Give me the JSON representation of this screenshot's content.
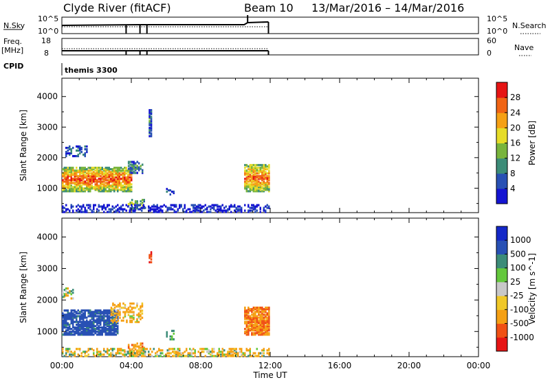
{
  "header": {
    "station": "Clyde River (fitACF)",
    "beam": "Beam 10",
    "date_range": "13/Mar/2016 – 14/Mar/2016"
  },
  "aux_panels": {
    "nsky_label": "N.Sky",
    "nsky_ticks": [
      "10^5",
      "10^0"
    ],
    "nsearch_label": "N.Search",
    "nsearch_ticks": [
      "10^5",
      "10^0"
    ],
    "freq_label": "Freq.",
    "freq_unit": "[MHz]",
    "freq_ticks": [
      "18",
      "8"
    ],
    "nave_label": "Nave",
    "nave_ticks": [
      "60",
      "0"
    ],
    "cpid_label": "CPID",
    "cpid_value": "themis 3300"
  },
  "x_axis": {
    "label": "Time UT",
    "ticks": [
      "00:00",
      "04:00",
      "08:00",
      "12:00",
      "16:00",
      "20:00",
      "00:00"
    ],
    "range_hours": [
      0,
      24
    ]
  },
  "colors": {
    "power": [
      "#1414d2",
      "#2850b4",
      "#3c8c78",
      "#78b43c",
      "#e6dc28",
      "#f5a014",
      "#f06414",
      "#e61414"
    ],
    "velocity": [
      "#e61414",
      "#f05014",
      "#f5a014",
      "#f0c828",
      "#c8c8c8",
      "#64c83c",
      "#3c8c78",
      "#2850b4",
      "#1428c8"
    ]
  },
  "chart_data": [
    {
      "type": "heatmap",
      "name": "Power panel",
      "ylabel": "Slant Range [km]",
      "yticks": [
        "1000",
        "2000",
        "3000",
        "4000"
      ],
      "ylim": [
        200,
        4600
      ],
      "colorbar_label": "Power [dB]",
      "colorbar_ticks": [
        "4",
        "8",
        "12",
        "16",
        "20",
        "24",
        "28"
      ],
      "colorbar_range": [
        0,
        32
      ],
      "regions": [
        {
          "t0": 0.0,
          "t1": 4.0,
          "r0": 900,
          "r1": 1700,
          "level": 0.8
        },
        {
          "t0": 0.2,
          "t1": 1.4,
          "r0": 2050,
          "r1": 2400,
          "level": 0.25
        },
        {
          "t0": 3.8,
          "t1": 4.6,
          "r0": 1500,
          "r1": 1900,
          "level": 0.3
        },
        {
          "t0": 3.8,
          "t1": 4.7,
          "r0": 300,
          "r1": 650,
          "level": 0.45
        },
        {
          "t0": 5.0,
          "t1": 5.1,
          "r0": 2700,
          "r1": 3600,
          "level": 0.25
        },
        {
          "t0": 6.0,
          "t1": 6.4,
          "r0": 750,
          "r1": 1050,
          "level": 0.2
        },
        {
          "t0": 10.5,
          "t1": 11.9,
          "r0": 900,
          "r1": 1800,
          "level": 0.75
        },
        {
          "t0": 0.0,
          "t1": 11.9,
          "r0": 220,
          "r1": 450,
          "level": 0.1
        }
      ]
    },
    {
      "type": "heatmap",
      "name": "Velocity panel",
      "ylabel": "Slant Range [km]",
      "yticks": [
        "1000",
        "2000",
        "3000",
        "4000"
      ],
      "ylim": [
        200,
        4600
      ],
      "colorbar_label": "Velocity [m s^-1]",
      "colorbar_ticks": [
        "1000",
        "500",
        "100",
        "25",
        "-25",
        "-100",
        "-500",
        "-1000"
      ],
      "regions": [
        {
          "t0": 0.0,
          "t1": 3.2,
          "r0": 900,
          "r1": 1700,
          "vel": 700
        },
        {
          "t0": 0.0,
          "t1": 0.6,
          "r0": 2050,
          "r1": 2400,
          "vel": 0
        },
        {
          "t0": 2.8,
          "t1": 4.6,
          "r0": 1300,
          "r1": 1900,
          "vel": -200
        },
        {
          "t0": 3.8,
          "t1": 4.7,
          "r0": 300,
          "r1": 650,
          "vel": -400
        },
        {
          "t0": 5.0,
          "t1": 5.1,
          "r0": 3200,
          "r1": 3600,
          "vel": -900
        },
        {
          "t0": 6.0,
          "t1": 6.4,
          "r0": 750,
          "r1": 1050,
          "vel": 300
        },
        {
          "t0": 10.5,
          "t1": 11.9,
          "r0": 900,
          "r1": 1800,
          "vel": -450
        },
        {
          "t0": 0.0,
          "t1": 11.9,
          "r0": 220,
          "r1": 450,
          "vel": -100
        }
      ]
    }
  ]
}
